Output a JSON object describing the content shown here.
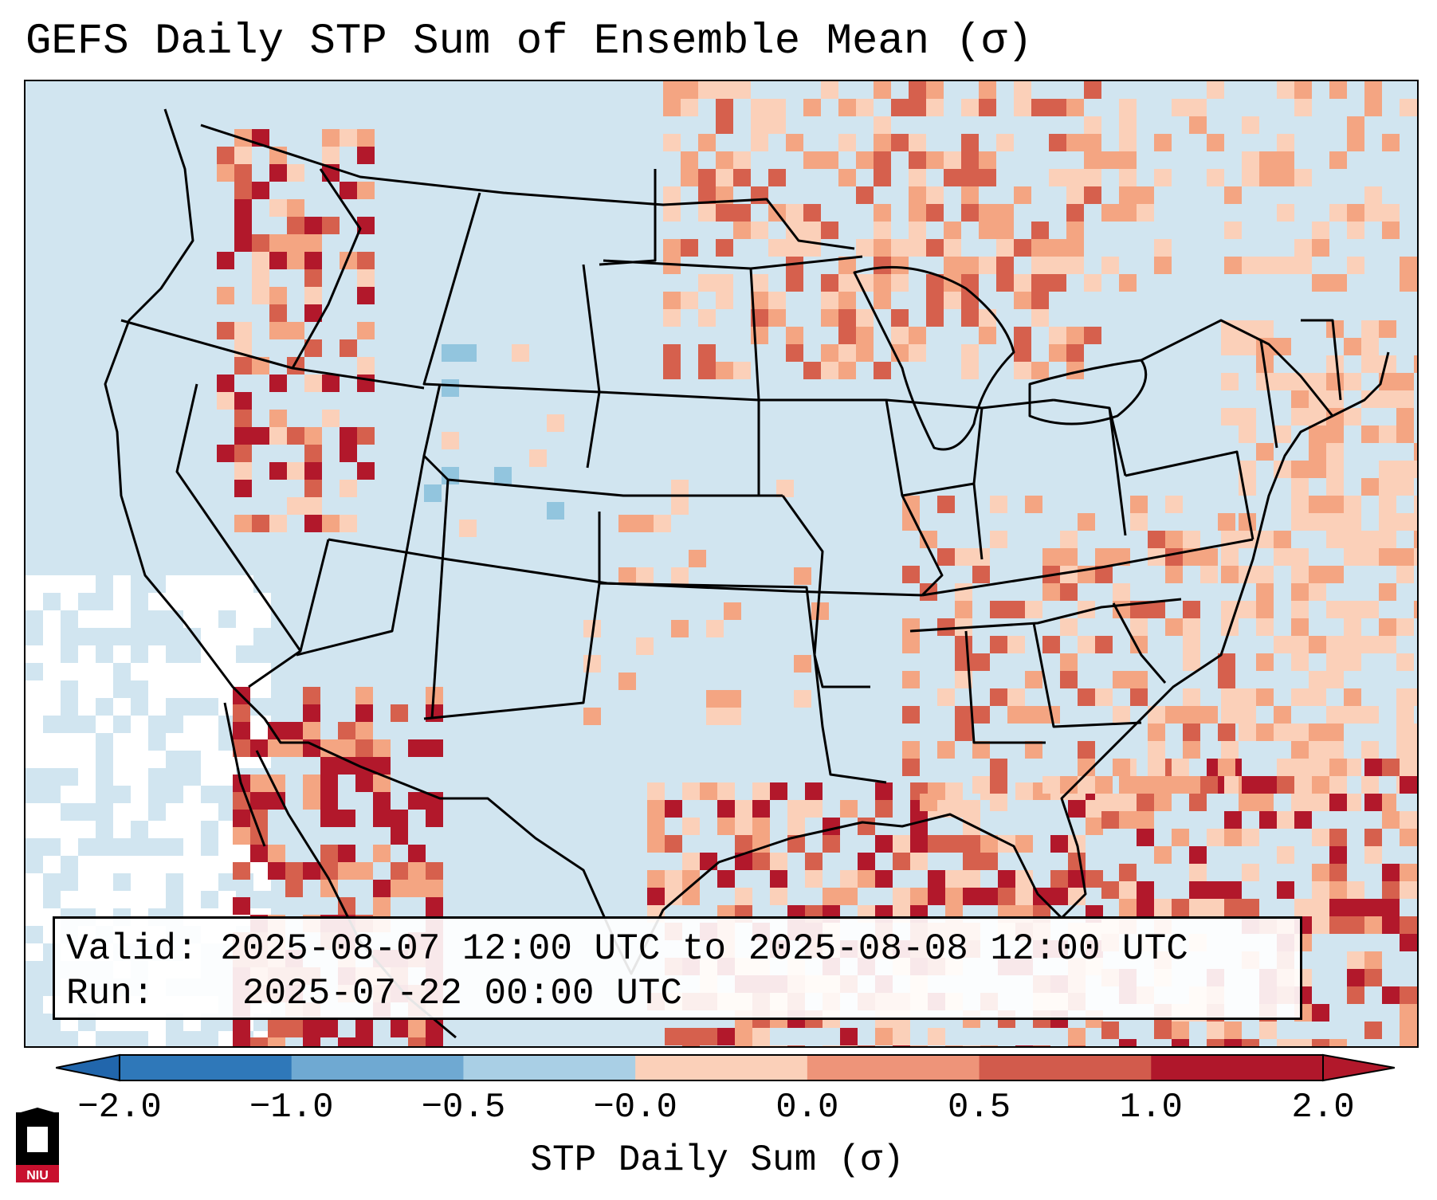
{
  "title": "GEFS Daily STP Sum of Ensemble Mean (σ)",
  "info_box": {
    "valid_label": "Valid:",
    "valid_value": "2025-08-07 12:00 UTC to 2025-08-08 12:00 UTC",
    "run_label": "Run:",
    "run_value": "2025-07-22 00:00 UTC"
  },
  "colorbar": {
    "title": "STP Daily Sum (σ)",
    "tick_labels": [
      "−2.0",
      "−1.0",
      "−0.5",
      "−0.0",
      "0.0",
      "0.5",
      "1.0",
      "2.0"
    ],
    "colors": [
      "#2f78b9",
      "#6fa9d2",
      "#a9cfe5",
      "#ffffff",
      "#fbd0b9",
      "#ee9479",
      "#d25b4c",
      "#b0172b"
    ],
    "extend": "both"
  },
  "map": {
    "region": "Contiguous United States",
    "background_color": "#d1e5f0",
    "field_colors": {
      "neutral_low": "#d1e5f0",
      "neutral_high": "#fbd0b9",
      "moderate": "#f4a582",
      "high": "#d6604d",
      "extreme": "#b2182b",
      "negative": "#92c5de",
      "zero": "#ffffff"
    }
  },
  "logo": {
    "text": "NIU",
    "colors": [
      "#c8102e",
      "#000000"
    ]
  }
}
